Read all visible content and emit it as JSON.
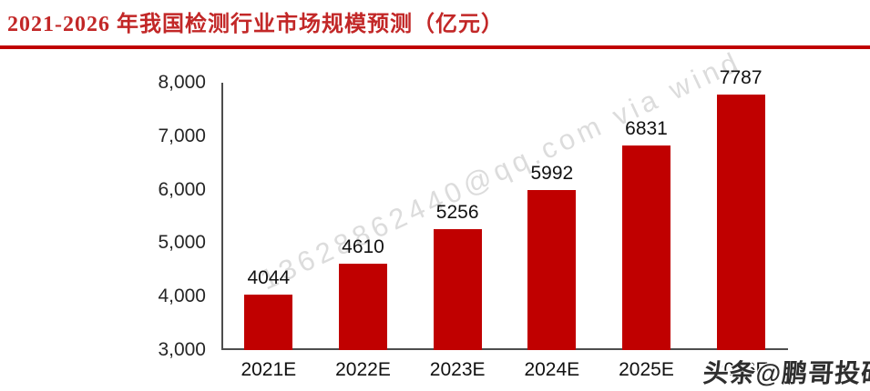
{
  "header": {
    "title": "2021-2026 年我国检测行业市场规模预测（亿元）",
    "title_color": "#c22727",
    "rule_color": "#c00000"
  },
  "chart_data": {
    "type": "bar",
    "title": "2021-2026 年我国检测行业市场规模预测（亿元）",
    "categories": [
      "2021E",
      "2022E",
      "2023E",
      "2024E",
      "2025E",
      "2026E"
    ],
    "values": [
      4044,
      4610,
      5256,
      5992,
      6831,
      7787
    ],
    "xlabel": "",
    "ylabel": "",
    "ylim": [
      3000,
      8000
    ],
    "yticks": [
      3000,
      4000,
      5000,
      6000,
      7000,
      8000
    ],
    "ytick_labels": [
      "3,000",
      "4,000",
      "5,000",
      "6,000",
      "7,000",
      "8,000"
    ],
    "bar_color": "#c00000",
    "axis_color": "#4d4d4d",
    "grid": false,
    "legend": "none",
    "data_labels": true
  },
  "watermark": {
    "text": "13628862440@qq.com via wind"
  },
  "branding": {
    "handle": "头条@鹏哥投研"
  }
}
